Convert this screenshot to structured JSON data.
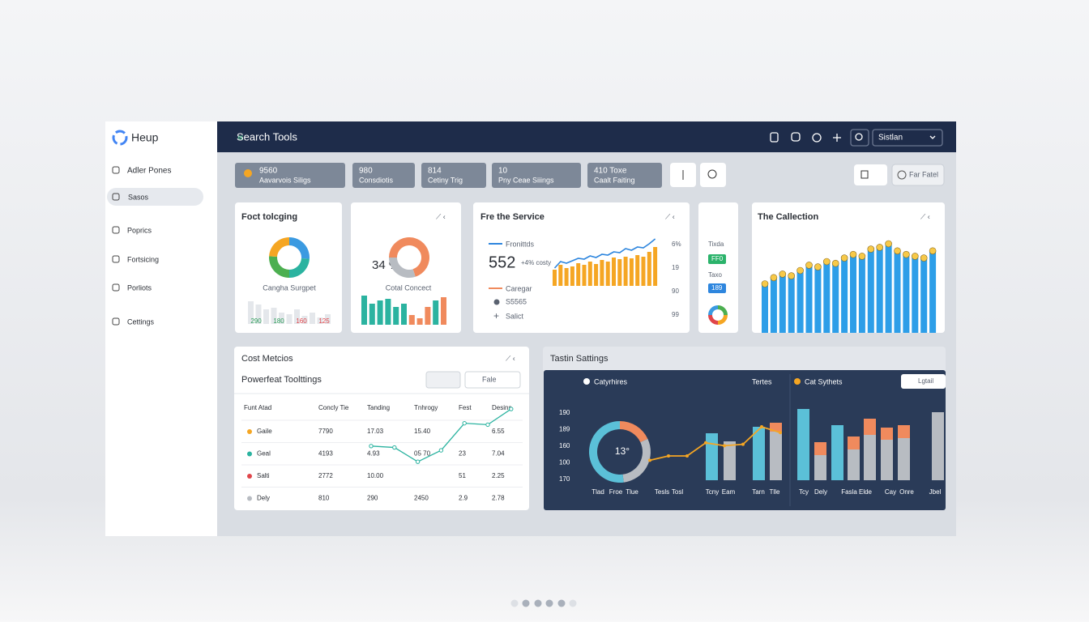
{
  "sidebar": {
    "logo": "Heup",
    "items": [
      "Adler Pones",
      "Sasos",
      "Poprics",
      "Fortsicing",
      "Porliots",
      "Cettings"
    ]
  },
  "topbar": {
    "title": "Search Tools",
    "menu": "Sistlan"
  },
  "chips": [
    {
      "value": "9560",
      "label": "Aavarvois Siligs"
    },
    {
      "value": "980",
      "label": "Consdiotis"
    },
    {
      "value": "814",
      "label": "Cetiny Trig"
    },
    {
      "value": "10",
      "label": "Pny Ceae Siiings"
    },
    {
      "value": "410 Toxe",
      "label": "Caalt Faiting"
    }
  ],
  "toolbar_button": "Far Fatel",
  "cards": {
    "focus": {
      "title": "Foct tolcging",
      "caption": "Cangha Surgpet",
      "donut": {
        "values": [
          26,
          24,
          26,
          24
        ],
        "colors": [
          "#3b9ae1",
          "#2bb3a0",
          "#4caf50",
          "#f5a623"
        ]
      },
      "bars": {
        "values": [
          28,
          24,
          18,
          20,
          14,
          12,
          18,
          10,
          14,
          8,
          12
        ],
        "color": "#e4e7eb"
      },
      "labels": [
        {
          "text": "290",
          "color": "#2e9e5b"
        },
        {
          "text": "180",
          "color": "#2e9e5b"
        },
        {
          "text": "160",
          "color": "#e0454a"
        },
        {
          "text": "125",
          "color": "#e0454a"
        }
      ]
    },
    "concect": {
      "value": "34 %",
      "caption": "Cotal Concect",
      "donut": {
        "values": [
          70,
          30
        ],
        "colors": [
          "#f08a5d",
          "#b8bcc2"
        ]
      },
      "bars": {
        "values": [
          36,
          26,
          30,
          32,
          22,
          26,
          12,
          8,
          22,
          30,
          34
        ],
        "colors": [
          "#2bb3a0",
          "#2bb3a0",
          "#2bb3a0",
          "#2bb3a0",
          "#2bb3a0",
          "#2bb3a0",
          "#f08a5d",
          "#f08a5d",
          "#f08a5d",
          "#2bb3a0",
          "#f08a5d"
        ]
      }
    },
    "service": {
      "title": "Fre the Service",
      "legend1": "Fronittds",
      "value": "552",
      "note": "+4% costy",
      "legend2": "Caregar",
      "item1": "S5565",
      "item2": "Salict",
      "axis": [
        "6%",
        "19",
        "90",
        "99"
      ],
      "bars": {
        "values": [
          20,
          26,
          22,
          24,
          28,
          26,
          30,
          27,
          32,
          30,
          35,
          33,
          36,
          34,
          38,
          36,
          42,
          48
        ],
        "color": "#f5a623"
      },
      "line": {
        "values": [
          22,
          30,
          28,
          31,
          34,
          33,
          37,
          35,
          39,
          38,
          42,
          41,
          46,
          44,
          48,
          47,
          52,
          58
        ],
        "color": "#2e86de"
      }
    },
    "mini": {
      "label1": "Tixda",
      "badge1": "FF0",
      "label2": "Taxo",
      "badge2": "189",
      "donut": {
        "values": [
          25,
          25,
          25,
          25
        ],
        "colors": [
          "#4caf50",
          "#f5a623",
          "#e0454a",
          "#3b9ae1"
        ]
      }
    },
    "collection": {
      "title": "The Callection",
      "bars": {
        "values": [
          55,
          62,
          66,
          64,
          70,
          76,
          74,
          80,
          78,
          84,
          88,
          86,
          94,
          96,
          100,
          92,
          88,
          86,
          84,
          92
        ],
        "color": "#2d9ee8",
        "dot": "#f7c948"
      }
    },
    "metrics": {
      "title": "Cost Metcios",
      "subtitle": "Powerfeat Toolttings",
      "filter": "Fale",
      "headers": [
        "Funt Atad",
        "Concly Tie",
        "Tanding",
        "Tnhrogy",
        "Fest",
        "Desins"
      ],
      "rows": [
        {
          "dot": "#f5a623",
          "cells": [
            "Gaile",
            "7790",
            "17.03",
            "15.40",
            "",
            "6.55"
          ]
        },
        {
          "dot": "#2bb3a0",
          "cells": [
            "Geal",
            "4193",
            "4.93",
            "05 70",
            "23",
            "7.04"
          ]
        },
        {
          "dot": "#e0454a",
          "cells": [
            "Salti",
            "2772",
            "10.00",
            "",
            "51",
            "2.25"
          ]
        },
        {
          "dot": "#b8bcc2",
          "cells": [
            "Dely",
            "810",
            "290",
            "2450",
            "2.9",
            "2.78"
          ]
        }
      ],
      "trend": {
        "values": [
          40,
          38,
          18,
          34,
          72,
          70,
          92
        ],
        "color": "#2bb3a0"
      }
    },
    "tasks": {
      "title": "Tastin Sattings",
      "legend1": "Catyrhires",
      "legend2": "Tertes",
      "legend3": "Cat Sythets",
      "select": "Lgtail",
      "donut_label": "13°",
      "donut": {
        "values": [
          18,
          30,
          52
        ],
        "colors": [
          "#f08a5d",
          "#b8bcc2",
          "#5bc0d8"
        ]
      },
      "yaxis": [
        "190",
        "189",
        "160",
        "100",
        "170"
      ],
      "xaxis_left": [
        "Tlad",
        "Froe",
        "Tlue",
        "Tesls",
        "Tosl",
        "Tcny",
        "Eam",
        "Tarn",
        "Tlle"
      ],
      "xaxis_right": [
        "Tcy",
        "Dely",
        "Fasla",
        "Elde",
        "Cay",
        "Onre",
        "Jbel"
      ],
      "line": {
        "values": [
          24,
          30,
          30,
          48,
          44,
          46,
          70,
          62
        ],
        "color": "#f5a623"
      },
      "left_bars": [
        {
          "value": 58,
          "color": "#5bc0d8"
        },
        {
          "value": 48,
          "color": "#b8bcc2"
        },
        {
          "value": 66,
          "color": "#5bc0d8"
        },
        {
          "value": 60,
          "color": "#b8bcc2",
          "cap": 11
        }
      ],
      "right_bars": [
        {
          "value": 88,
          "color": "#5bc0d8"
        },
        {
          "value": 31,
          "color": "#b8bcc2",
          "cap": 16
        },
        {
          "value": 68,
          "color": "#5bc0d8"
        },
        {
          "value": 38,
          "color": "#b8bcc2",
          "cap": 16
        },
        {
          "value": 56,
          "color": "#b8bcc2",
          "cap": 20
        },
        {
          "value": 50,
          "color": "#b8bcc2",
          "cap": 15
        },
        {
          "value": 52,
          "color": "#b8bcc2",
          "cap": 16
        },
        {
          "value": 84,
          "color": "#b8bcc2"
        }
      ],
      "cap_color": "#f08a5d"
    }
  }
}
